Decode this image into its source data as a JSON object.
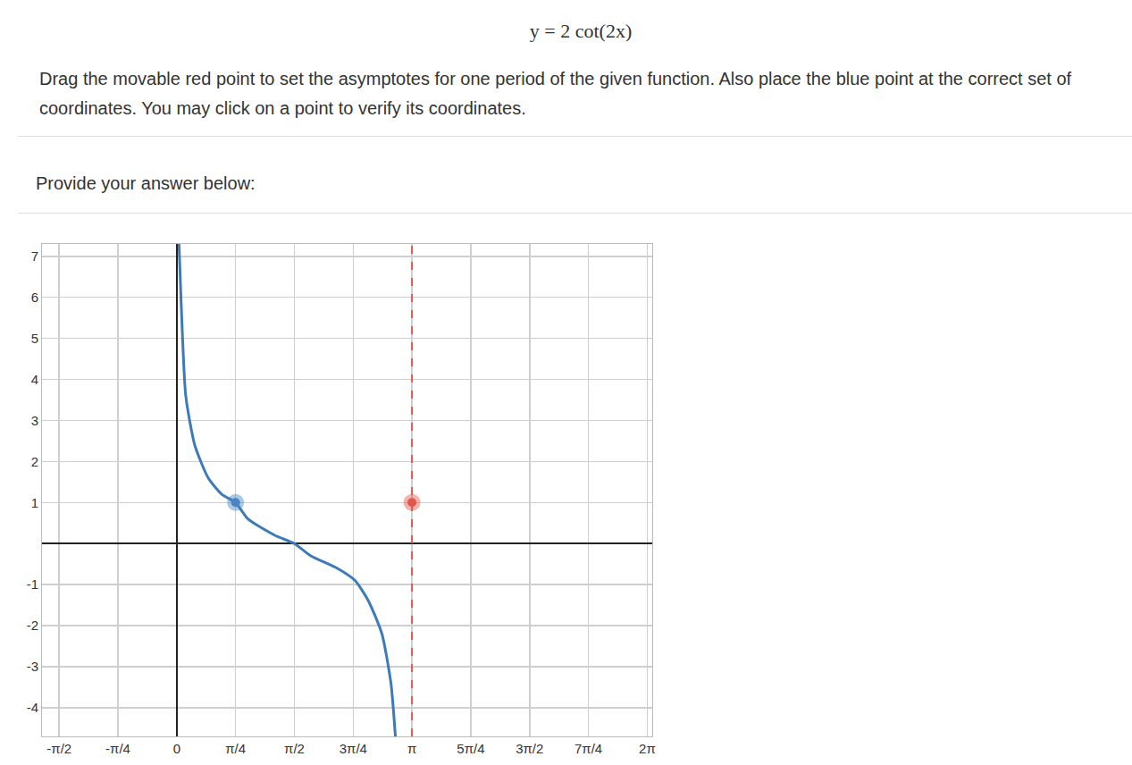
{
  "page": {
    "equation": "y = 2 cot(2x)",
    "instructions": "Drag the movable red point to set the asymptotes for one period of the given function. Also place the blue point at the correct set of coordinates. You may click on a point to verify its coordinates.",
    "prompt": "Provide your answer below:"
  },
  "chart_data": {
    "type": "line",
    "x": [
      0.03,
      0.06,
      0.12,
      0.24,
      0.42,
      0.6,
      0.785,
      0.95,
      1.31,
      1.57,
      1.79,
      2.14,
      2.38,
      2.56,
      2.74,
      2.86,
      2.92
    ],
    "values": [
      7.3,
      5.8,
      3.6,
      2.4,
      1.6,
      1.2,
      1.0,
      0.6,
      0.2,
      0,
      -0.3,
      -0.6,
      -0.9,
      -1.4,
      -2.2,
      -3.4,
      -4.7
    ],
    "color": "#3d7ab8",
    "xlim": [
      -1.8,
      6.35
    ],
    "ylim": [
      -4.7,
      7.3
    ],
    "xticks": [
      {
        "value": -1.5708,
        "label": "-π/2"
      },
      {
        "value": -0.7854,
        "label": "-π/4"
      },
      0,
      {
        "value": 0.7854,
        "label": "π/4"
      },
      {
        "value": 1.5708,
        "label": "π/2"
      },
      {
        "value": 2.3562,
        "label": "3π/4"
      },
      {
        "value": 3.1416,
        "label": "π"
      },
      {
        "value": 3.927,
        "label": "5π/4"
      },
      {
        "value": 4.7124,
        "label": "3π/2"
      },
      {
        "value": 5.4978,
        "label": "7π/4"
      },
      {
        "value": 6.2832,
        "label": "2π"
      }
    ],
    "yticks": [
      -4,
      -3,
      -2,
      -1,
      1,
      2,
      3,
      4,
      5,
      6,
      7
    ],
    "grid": true,
    "blue_point": {
      "x": 0.7854,
      "y": 1,
      "color": "#4a86c5"
    },
    "red_point": {
      "x": 3.1416,
      "y": 1,
      "color": "#e0584a"
    }
  }
}
